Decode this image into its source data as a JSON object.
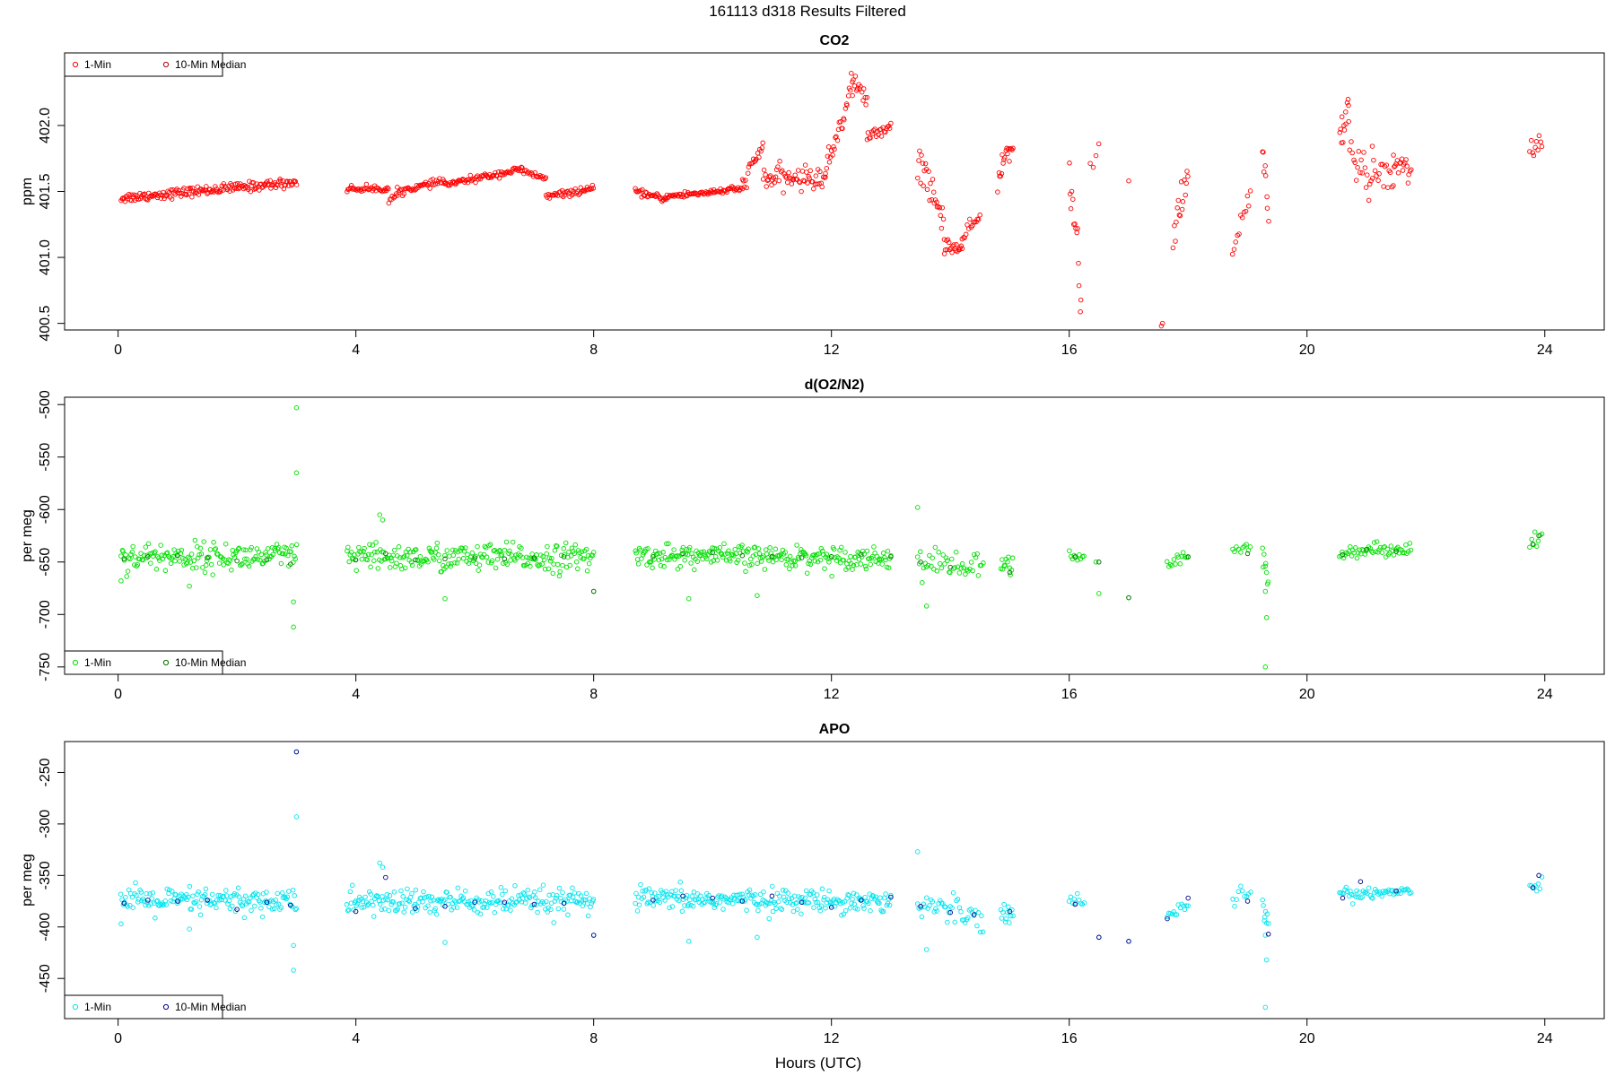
{
  "suptitle": "161113   d318   Results Filtered",
  "xlabel": "Hours (UTC)",
  "chart_data": [
    {
      "type": "scatter",
      "title": "CO2",
      "ylabel": "ppm",
      "xlim": [
        -0.9,
        25.0
      ],
      "ylim": [
        400.45,
        402.55
      ],
      "xticks": [
        0,
        4,
        8,
        12,
        16,
        20,
        24
      ],
      "yticks": [
        400.5,
        401.0,
        401.5,
        402.0
      ],
      "ytick_labels": [
        "400.5",
        "401.0",
        "401.5",
        "402.0"
      ],
      "legend_position": "top-left",
      "series": [
        {
          "name": "1-Min",
          "color": "#ff0000",
          "marker": "open-circle",
          "segments": [
            {
              "x": [
                0.05,
                3.0
              ],
              "y": [
                401.45,
                401.57
              ],
              "noise": 0.03,
              "n": 180
            },
            {
              "x": [
                3.85,
                4.55
              ],
              "y": [
                401.52,
                401.52
              ],
              "noise": 0.02,
              "n": 40
            },
            {
              "x": [
                4.55,
                4.7
              ],
              "y": [
                401.42,
                401.48
              ],
              "noise": 0.02,
              "n": 8
            },
            {
              "x": [
                4.7,
                5.5
              ],
              "y": [
                401.5,
                401.58
              ],
              "noise": 0.02,
              "n": 45
            },
            {
              "x": [
                5.5,
                6.8
              ],
              "y": [
                401.55,
                401.67
              ],
              "noise": 0.02,
              "n": 75
            },
            {
              "x": [
                6.8,
                7.2
              ],
              "y": [
                401.65,
                401.6
              ],
              "noise": 0.02,
              "n": 20
            },
            {
              "x": [
                7.2,
                8.0
              ],
              "y": [
                401.46,
                401.52
              ],
              "noise": 0.02,
              "n": 45
            },
            {
              "x": [
                8.7,
                9.2
              ],
              "y": [
                401.5,
                401.44
              ],
              "noise": 0.02,
              "n": 30
            },
            {
              "x": [
                9.2,
                10.5
              ],
              "y": [
                401.46,
                401.52
              ],
              "noise": 0.02,
              "n": 75
            },
            {
              "x": [
                10.5,
                10.85
              ],
              "y": [
                401.55,
                401.85
              ],
              "noise": 0.05,
              "n": 20
            },
            {
              "x": [
                10.85,
                11.9
              ],
              "y": [
                401.6,
                401.6
              ],
              "noise": 0.07,
              "n": 60
            },
            {
              "x": [
                11.9,
                12.35
              ],
              "y": [
                401.65,
                402.3
              ],
              "noise": 0.08,
              "n": 28
            },
            {
              "x": [
                12.35,
                12.6
              ],
              "y": [
                402.35,
                402.2
              ],
              "noise": 0.06,
              "n": 15
            },
            {
              "x": [
                12.6,
                13.0
              ],
              "y": [
                401.9,
                402.0
              ],
              "noise": 0.04,
              "n": 22
            },
            {
              "x": [
                13.45,
                13.9
              ],
              "y": [
                401.75,
                401.25
              ],
              "noise": 0.12,
              "n": 28
            },
            {
              "x": [
                13.9,
                14.2
              ],
              "y": [
                401.1,
                401.05
              ],
              "noise": 0.05,
              "n": 20
            },
            {
              "x": [
                14.2,
                14.5
              ],
              "y": [
                401.15,
                401.3
              ],
              "noise": 0.04,
              "n": 15
            },
            {
              "x": [
                14.8,
                15.05
              ],
              "y": [
                401.6,
                401.9
              ],
              "noise": 0.1,
              "n": 18
            },
            {
              "x": [
                16.0,
                16.2
              ],
              "y": [
                401.7,
                400.7
              ],
              "noise": 0.15,
              "n": 14
            },
            {
              "x": [
                16.35,
                16.5
              ],
              "y": [
                401.65,
                401.8
              ],
              "noise": 0.05,
              "n": 4
            }
          ],
          "points_x": [
            17.0,
            17.55,
            17.57
          ],
          "points_y": [
            401.58,
            400.48,
            400.5
          ],
          "segments_more": [
            {
              "x": [
                17.75,
                18.0
              ],
              "y": [
                401.2,
                401.6
              ],
              "noise": 0.12,
              "n": 16
            },
            {
              "x": [
                18.75,
                19.05
              ],
              "y": [
                401.0,
                401.5
              ],
              "noise": 0.1,
              "n": 12
            },
            {
              "x": [
                19.25,
                19.35
              ],
              "y": [
                401.8,
                401.4
              ],
              "noise": 0.1,
              "n": 8
            },
            {
              "x": [
                20.55,
                20.7
              ],
              "y": [
                401.9,
                402.15
              ],
              "noise": 0.1,
              "n": 12
            },
            {
              "x": [
                20.7,
                21.1
              ],
              "y": [
                401.8,
                401.55
              ],
              "noise": 0.15,
              "n": 20
            },
            {
              "x": [
                21.1,
                21.45
              ],
              "y": [
                401.75,
                401.55
              ],
              "noise": 0.15,
              "n": 16
            },
            {
              "x": [
                21.45,
                21.75
              ],
              "y": [
                401.75,
                401.65
              ],
              "noise": 0.1,
              "n": 18
            },
            {
              "x": [
                23.75,
                23.95
              ],
              "y": [
                401.8,
                401.9
              ],
              "noise": 0.08,
              "n": 10
            }
          ]
        },
        {
          "name": "10-Min Median",
          "color": "#b00000",
          "marker": "open-circle"
        }
      ]
    },
    {
      "type": "scatter",
      "title": "d(O2/N2)",
      "ylabel": "per meg",
      "xlim": [
        -0.9,
        25.0
      ],
      "ylim": [
        -757,
        -493
      ],
      "xticks": [
        0,
        4,
        8,
        12,
        16,
        20,
        24
      ],
      "yticks": [
        -750,
        -700,
        -650,
        -600,
        -550,
        -500
      ],
      "ytick_labels": [
        "-750",
        "-700",
        "-650",
        "-600",
        "-550",
        "-500"
      ],
      "legend_position": "bottom-left",
      "series": [
        {
          "name": "1-Min",
          "color": "#00e000",
          "marker": "open-circle",
          "segments": [
            {
              "x": [
                0.05,
                3.0
              ],
              "y": [
                -645,
                -645
              ],
              "noise": 11,
              "n": 160
            },
            {
              "x": [
                3.85,
                8.0
              ],
              "y": [
                -646,
                -646
              ],
              "noise": 11,
              "n": 230
            },
            {
              "x": [
                8.7,
                13.0
              ],
              "y": [
                -644,
                -646
              ],
              "noise": 9,
              "n": 240
            },
            {
              "x": [
                13.45,
                14.55
              ],
              "y": [
                -650,
                -655
              ],
              "noise": 11,
              "n": 45
            },
            {
              "x": [
                14.85,
                15.05
              ],
              "y": [
                -655,
                -655
              ],
              "noise": 10,
              "n": 12
            },
            {
              "x": [
                16.0,
                16.25
              ],
              "y": [
                -645,
                -645
              ],
              "noise": 6,
              "n": 10
            },
            {
              "x": [
                17.65,
                18.0
              ],
              "y": [
                -653,
                -645
              ],
              "noise": 5,
              "n": 14
            },
            {
              "x": [
                18.75,
                19.05
              ],
              "y": [
                -640,
                -635
              ],
              "noise": 5,
              "n": 10
            },
            {
              "x": [
                19.25,
                19.35
              ],
              "y": [
                -645,
                -665
              ],
              "noise": 10,
              "n": 8
            },
            {
              "x": [
                20.55,
                21.75
              ],
              "y": [
                -640,
                -637
              ],
              "noise": 5,
              "n": 55
            },
            {
              "x": [
                23.75,
                23.95
              ],
              "y": [
                -630,
                -625
              ],
              "noise": 8,
              "n": 8
            }
          ],
          "points_x": [
            3.0,
            3.0,
            2.95,
            2.95,
            13.45,
            13.6,
            16.45,
            16.5,
            17.0,
            19.3,
            19.32,
            19.3,
            4.4,
            4.45,
            5.5,
            9.6,
            10.75,
            8.0,
            0.05,
            1.2
          ],
          "points_y": [
            -503,
            -565,
            -688,
            -712,
            -598,
            -692,
            -650,
            -680,
            -684,
            -750,
            -703,
            -678,
            -605,
            -610,
            -685,
            -685,
            -682,
            -678,
            -668,
            -673
          ]
        },
        {
          "name": "10-Min Median",
          "color": "#007000",
          "marker": "open-circle",
          "x": [
            0.1,
            0.5,
            1.0,
            1.5,
            2.0,
            2.5,
            2.9,
            4.0,
            4.5,
            5.0,
            5.5,
            6.0,
            6.5,
            7.0,
            7.5,
            8.0,
            9.0,
            9.5,
            10.0,
            10.5,
            11.0,
            11.5,
            12.0,
            12.5,
            13.0,
            13.5,
            14.0,
            15.0,
            16.1,
            16.5,
            17.0,
            18.0,
            19.0,
            20.6,
            21.0,
            21.5,
            23.8,
            23.9
          ],
          "y": [
            -647,
            -645,
            -644,
            -646,
            -649,
            -648,
            -652,
            -648,
            -642,
            -648,
            -647,
            -646,
            -647,
            -646,
            -645,
            -678,
            -645,
            -642,
            -641,
            -644,
            -645,
            -646,
            -645,
            -643,
            -645,
            -650,
            -655,
            -660,
            -645,
            -650,
            -684,
            -645,
            -642,
            -643,
            -638,
            -640,
            -633,
            -625
          ]
        }
      ]
    },
    {
      "type": "scatter",
      "title": "APO",
      "ylabel": "per meg",
      "xlim": [
        -0.9,
        25.0
      ],
      "ylim": [
        -489,
        -220
      ],
      "xticks": [
        0,
        4,
        8,
        12,
        16,
        20,
        24
      ],
      "yticks": [
        -450,
        -400,
        -350,
        -300,
        -250
      ],
      "ytick_labels": [
        "-450",
        "-400",
        "-350",
        "-300",
        "-250"
      ],
      "legend_position": "bottom-left",
      "series": [
        {
          "name": "1-Min",
          "color": "#00e5ee",
          "marker": "open-circle",
          "segments": [
            {
              "x": [
                0.05,
                3.0
              ],
              "y": [
                -375,
                -375
              ],
              "noise": 11,
              "n": 160
            },
            {
              "x": [
                3.85,
                8.0
              ],
              "y": [
                -376,
                -376
              ],
              "noise": 11,
              "n": 230
            },
            {
              "x": [
                8.7,
                13.0
              ],
              "y": [
                -373,
                -375
              ],
              "noise": 9,
              "n": 240
            },
            {
              "x": [
                13.45,
                14.55
              ],
              "y": [
                -378,
                -388
              ],
              "noise": 11,
              "n": 45
            },
            {
              "x": [
                14.85,
                15.05
              ],
              "y": [
                -385,
                -385
              ],
              "noise": 10,
              "n": 12
            },
            {
              "x": [
                16.0,
                16.25
              ],
              "y": [
                -374,
                -378
              ],
              "noise": 6,
              "n": 10
            },
            {
              "x": [
                17.65,
                18.0
              ],
              "y": [
                -390,
                -375
              ],
              "noise": 5,
              "n": 14
            },
            {
              "x": [
                18.75,
                19.05
              ],
              "y": [
                -375,
                -365
              ],
              "noise": 6,
              "n": 10
            },
            {
              "x": [
                19.25,
                19.35
              ],
              "y": [
                -380,
                -395
              ],
              "noise": 10,
              "n": 8
            },
            {
              "x": [
                20.55,
                21.75
              ],
              "y": [
                -368,
                -365
              ],
              "noise": 5,
              "n": 55
            },
            {
              "x": [
                23.75,
                23.95
              ],
              "y": [
                -360,
                -355
              ],
              "noise": 8,
              "n": 8
            }
          ],
          "points_x": [
            3.0,
            3.0,
            2.95,
            2.95,
            13.45,
            13.6,
            16.5,
            17.0,
            19.3,
            19.32,
            19.3,
            4.4,
            4.45,
            5.5,
            9.6,
            10.75,
            8.0,
            0.05,
            1.2
          ],
          "points_y": [
            -230,
            -293,
            -418,
            -442,
            -327,
            -422,
            -410,
            -414,
            -478,
            -432,
            -408,
            -338,
            -342,
            -415,
            -414,
            -410,
            -408,
            -397,
            -402
          ]
        },
        {
          "name": "10-Min Median",
          "color": "#00008b",
          "marker": "open-circle",
          "x": [
            0.1,
            0.5,
            1.0,
            1.5,
            2.0,
            2.5,
            2.9,
            3.0,
            4.0,
            4.5,
            5.0,
            5.5,
            6.0,
            6.5,
            7.0,
            7.5,
            8.0,
            9.0,
            9.5,
            10.0,
            10.5,
            11.0,
            11.5,
            12.0,
            12.5,
            13.0,
            13.5,
            14.0,
            14.4,
            15.0,
            16.1,
            16.5,
            17.0,
            17.65,
            18.0,
            19.0,
            19.35,
            20.6,
            20.9,
            21.5,
            23.8,
            23.9
          ],
          "y": [
            -377,
            -374,
            -375,
            -374,
            -383,
            -376,
            -379,
            -230,
            -385,
            -352,
            -382,
            -380,
            -376,
            -376,
            -378,
            -377,
            -408,
            -374,
            -370,
            -372,
            -375,
            -370,
            -376,
            -381,
            -374,
            -371,
            -380,
            -386,
            -388,
            -385,
            -378,
            -410,
            -414,
            -392,
            -372,
            -375,
            -407,
            -372,
            -356,
            -365,
            -362,
            -350
          ]
        }
      ]
    }
  ]
}
